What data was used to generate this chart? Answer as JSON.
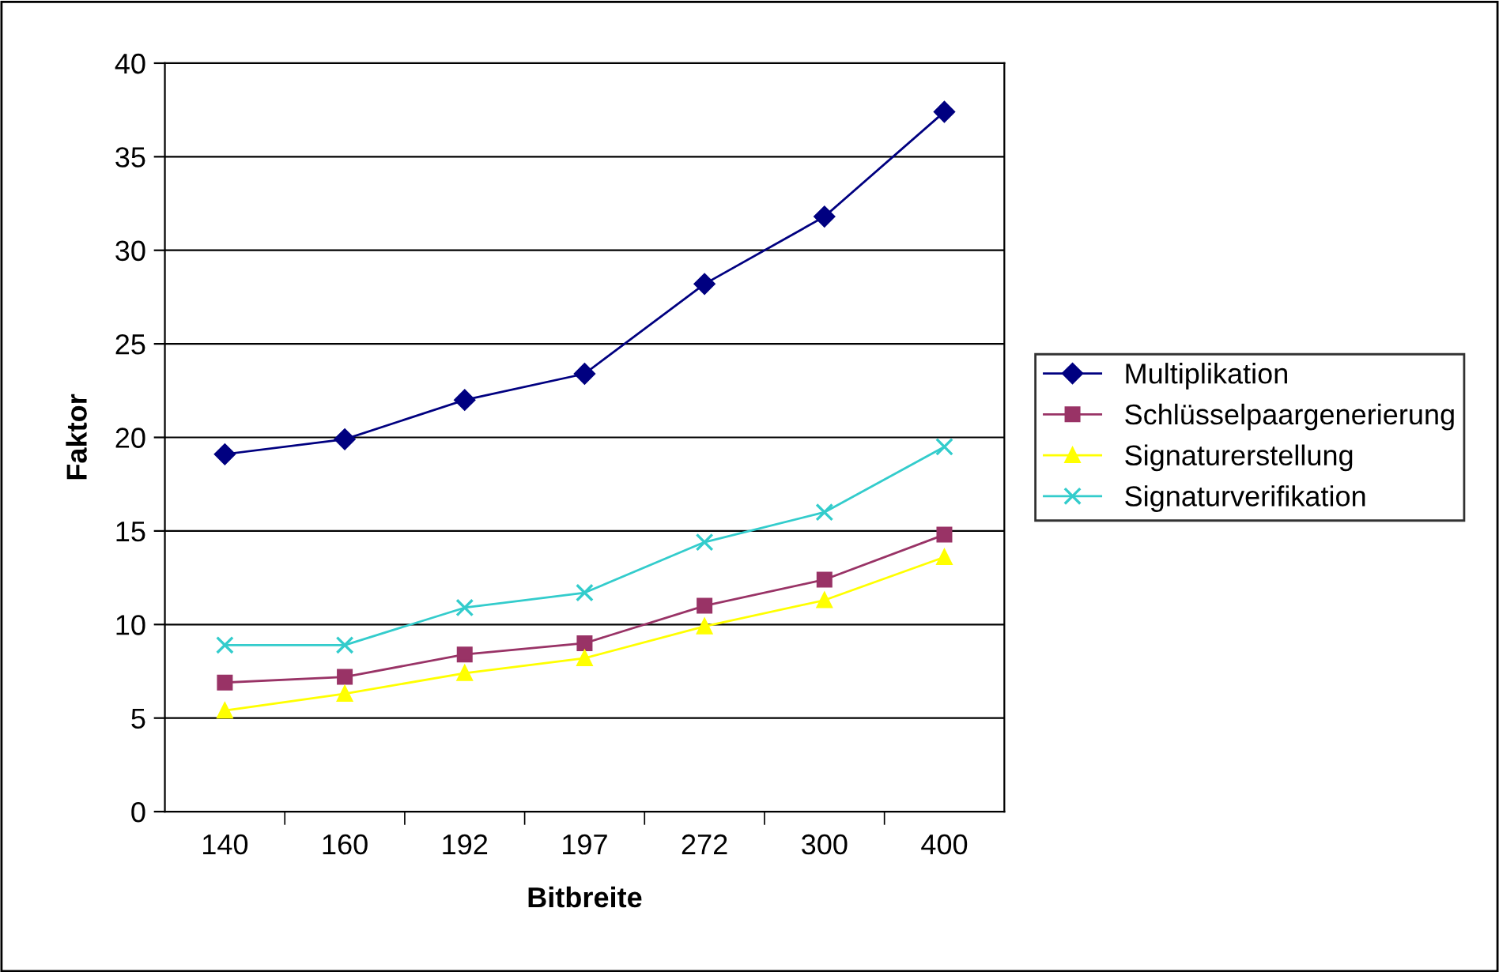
{
  "chart_data": {
    "type": "line",
    "xlabel": "Bitbreite",
    "ylabel": "Faktor",
    "categories": [
      "140",
      "160",
      "192",
      "197",
      "272",
      "300",
      "400"
    ],
    "series": [
      {
        "name": "Multiplikation",
        "color": "#000080",
        "marker": "diamond",
        "values": [
          19.1,
          19.9,
          22.0,
          23.4,
          28.2,
          31.8,
          37.4
        ]
      },
      {
        "name": "Schlüsselpaargenerierung",
        "color": "#993366",
        "marker": "square",
        "values": [
          6.9,
          7.2,
          8.4,
          9.0,
          11.0,
          12.4,
          14.8
        ]
      },
      {
        "name": "Signaturerstellung",
        "color": "#ffff00",
        "marker": "triangle",
        "values": [
          5.4,
          6.3,
          7.4,
          8.2,
          9.9,
          11.3,
          13.6
        ]
      },
      {
        "name": "Signaturverifikation",
        "color": "#33cccc",
        "marker": "cross",
        "values": [
          8.9,
          8.9,
          10.9,
          11.7,
          14.4,
          16.0,
          19.5
        ]
      }
    ],
    "ylim": [
      0,
      40
    ],
    "yticks": [
      0,
      5,
      10,
      15,
      20,
      25,
      30,
      35,
      40
    ],
    "grid": "y",
    "legend": "right"
  }
}
